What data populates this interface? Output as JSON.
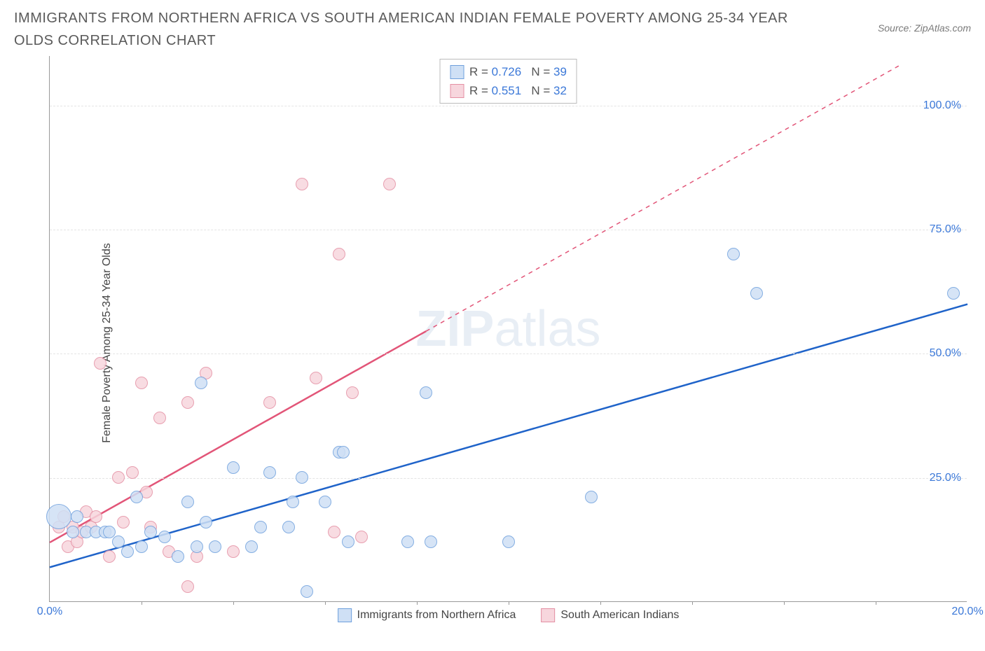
{
  "title": "IMMIGRANTS FROM NORTHERN AFRICA VS SOUTH AMERICAN INDIAN FEMALE POVERTY AMONG 25-34 YEAR OLDS CORRELATION CHART",
  "source": "Source: ZipAtlas.com",
  "ylabel": "Female Poverty Among 25-34 Year Olds",
  "watermark_bold": "ZIP",
  "watermark_rest": "atlas",
  "chart": {
    "type": "scatter",
    "xlim": [
      0,
      20
    ],
    "ylim": [
      0,
      110
    ],
    "xticks": [
      {
        "v": 0,
        "label": "0.0%"
      },
      {
        "v": 20,
        "label": "20.0%"
      }
    ],
    "xminor": [
      2,
      4,
      6,
      8,
      10,
      12,
      14,
      16,
      18
    ],
    "yticks": [
      {
        "v": 25,
        "label": "25.0%"
      },
      {
        "v": 50,
        "label": "50.0%"
      },
      {
        "v": 75,
        "label": "75.0%"
      },
      {
        "v": 100,
        "label": "100.0%"
      }
    ],
    "background_color": "#ffffff",
    "grid_color": "#e4e4e4",
    "axis_color": "#999999",
    "tick_label_color": "#3b78d8"
  },
  "series": [
    {
      "name": "Immigrants from Northern Africa",
      "color_fill": "#cfe0f5",
      "color_stroke": "#6fa0dd",
      "trend_color": "#1f63c9",
      "trend_dashed": false,
      "R": "0.726",
      "N": "39",
      "trend": {
        "x1": 0,
        "y1": 7,
        "x2": 20,
        "y2": 60
      },
      "points": [
        {
          "x": 0.2,
          "y": 17,
          "r": 18
        },
        {
          "x": 0.5,
          "y": 14,
          "r": 9
        },
        {
          "x": 0.6,
          "y": 17,
          "r": 9
        },
        {
          "x": 0.8,
          "y": 14,
          "r": 9
        },
        {
          "x": 1.0,
          "y": 14,
          "r": 9
        },
        {
          "x": 1.2,
          "y": 14,
          "r": 9
        },
        {
          "x": 1.3,
          "y": 14,
          "r": 9
        },
        {
          "x": 1.5,
          "y": 12,
          "r": 9
        },
        {
          "x": 1.7,
          "y": 10,
          "r": 9
        },
        {
          "x": 1.9,
          "y": 21,
          "r": 9
        },
        {
          "x": 2.0,
          "y": 11,
          "r": 9
        },
        {
          "x": 2.2,
          "y": 14,
          "r": 9
        },
        {
          "x": 2.5,
          "y": 13,
          "r": 9
        },
        {
          "x": 2.8,
          "y": 9,
          "r": 9
        },
        {
          "x": 3.0,
          "y": 20,
          "r": 9
        },
        {
          "x": 3.2,
          "y": 11,
          "r": 9
        },
        {
          "x": 3.3,
          "y": 44,
          "r": 9
        },
        {
          "x": 3.4,
          "y": 16,
          "r": 9
        },
        {
          "x": 3.6,
          "y": 11,
          "r": 9
        },
        {
          "x": 4.0,
          "y": 27,
          "r": 9
        },
        {
          "x": 4.4,
          "y": 11,
          "r": 9
        },
        {
          "x": 4.6,
          "y": 15,
          "r": 9
        },
        {
          "x": 4.8,
          "y": 26,
          "r": 9
        },
        {
          "x": 5.2,
          "y": 15,
          "r": 9
        },
        {
          "x": 5.3,
          "y": 20,
          "r": 9
        },
        {
          "x": 5.5,
          "y": 25,
          "r": 9
        },
        {
          "x": 5.6,
          "y": 2,
          "r": 9
        },
        {
          "x": 6.0,
          "y": 20,
          "r": 9
        },
        {
          "x": 6.3,
          "y": 30,
          "r": 9
        },
        {
          "x": 6.4,
          "y": 30,
          "r": 9
        },
        {
          "x": 6.5,
          "y": 12,
          "r": 9
        },
        {
          "x": 7.8,
          "y": 12,
          "r": 9
        },
        {
          "x": 8.2,
          "y": 42,
          "r": 9
        },
        {
          "x": 8.3,
          "y": 12,
          "r": 9
        },
        {
          "x": 10.0,
          "y": 12,
          "r": 9
        },
        {
          "x": 11.8,
          "y": 21,
          "r": 9
        },
        {
          "x": 14.9,
          "y": 70,
          "r": 9
        },
        {
          "x": 15.4,
          "y": 62,
          "r": 9
        },
        {
          "x": 19.7,
          "y": 62,
          "r": 9
        }
      ]
    },
    {
      "name": "South American Indians",
      "color_fill": "#f7d6dd",
      "color_stroke": "#e48fa3",
      "trend_color": "#e25578",
      "trend_dashed_after_x": 8.2,
      "R": "0.551",
      "N": "32",
      "trend": {
        "x1": 0,
        "y1": 12,
        "x2": 18.5,
        "y2": 108
      },
      "points": [
        {
          "x": 0.2,
          "y": 15,
          "r": 9
        },
        {
          "x": 0.3,
          "y": 17,
          "r": 9
        },
        {
          "x": 0.4,
          "y": 11,
          "r": 9
        },
        {
          "x": 0.5,
          "y": 15,
          "r": 9
        },
        {
          "x": 0.6,
          "y": 12,
          "r": 9
        },
        {
          "x": 0.7,
          "y": 14,
          "r": 9
        },
        {
          "x": 0.8,
          "y": 18,
          "r": 9
        },
        {
          "x": 0.9,
          "y": 15,
          "r": 9
        },
        {
          "x": 1.0,
          "y": 17,
          "r": 9
        },
        {
          "x": 1.1,
          "y": 48,
          "r": 9
        },
        {
          "x": 1.3,
          "y": 9,
          "r": 9
        },
        {
          "x": 1.5,
          "y": 25,
          "r": 9
        },
        {
          "x": 1.6,
          "y": 16,
          "r": 9
        },
        {
          "x": 1.8,
          "y": 26,
          "r": 9
        },
        {
          "x": 2.0,
          "y": 44,
          "r": 9
        },
        {
          "x": 2.1,
          "y": 22,
          "r": 9
        },
        {
          "x": 2.2,
          "y": 15,
          "r": 9
        },
        {
          "x": 2.4,
          "y": 37,
          "r": 9
        },
        {
          "x": 2.6,
          "y": 10,
          "r": 9
        },
        {
          "x": 3.0,
          "y": 3,
          "r": 9
        },
        {
          "x": 3.0,
          "y": 40,
          "r": 9
        },
        {
          "x": 3.2,
          "y": 9,
          "r": 9
        },
        {
          "x": 3.4,
          "y": 46,
          "r": 9
        },
        {
          "x": 4.0,
          "y": 10,
          "r": 9
        },
        {
          "x": 4.8,
          "y": 40,
          "r": 9
        },
        {
          "x": 5.5,
          "y": 84,
          "r": 9
        },
        {
          "x": 5.8,
          "y": 45,
          "r": 9
        },
        {
          "x": 6.2,
          "y": 14,
          "r": 9
        },
        {
          "x": 6.3,
          "y": 70,
          "r": 9
        },
        {
          "x": 6.6,
          "y": 42,
          "r": 9
        },
        {
          "x": 6.8,
          "y": 13,
          "r": 9
        },
        {
          "x": 7.4,
          "y": 84,
          "r": 9
        }
      ]
    }
  ],
  "footer_legend": [
    "Immigrants from Northern Africa",
    "South American Indians"
  ]
}
